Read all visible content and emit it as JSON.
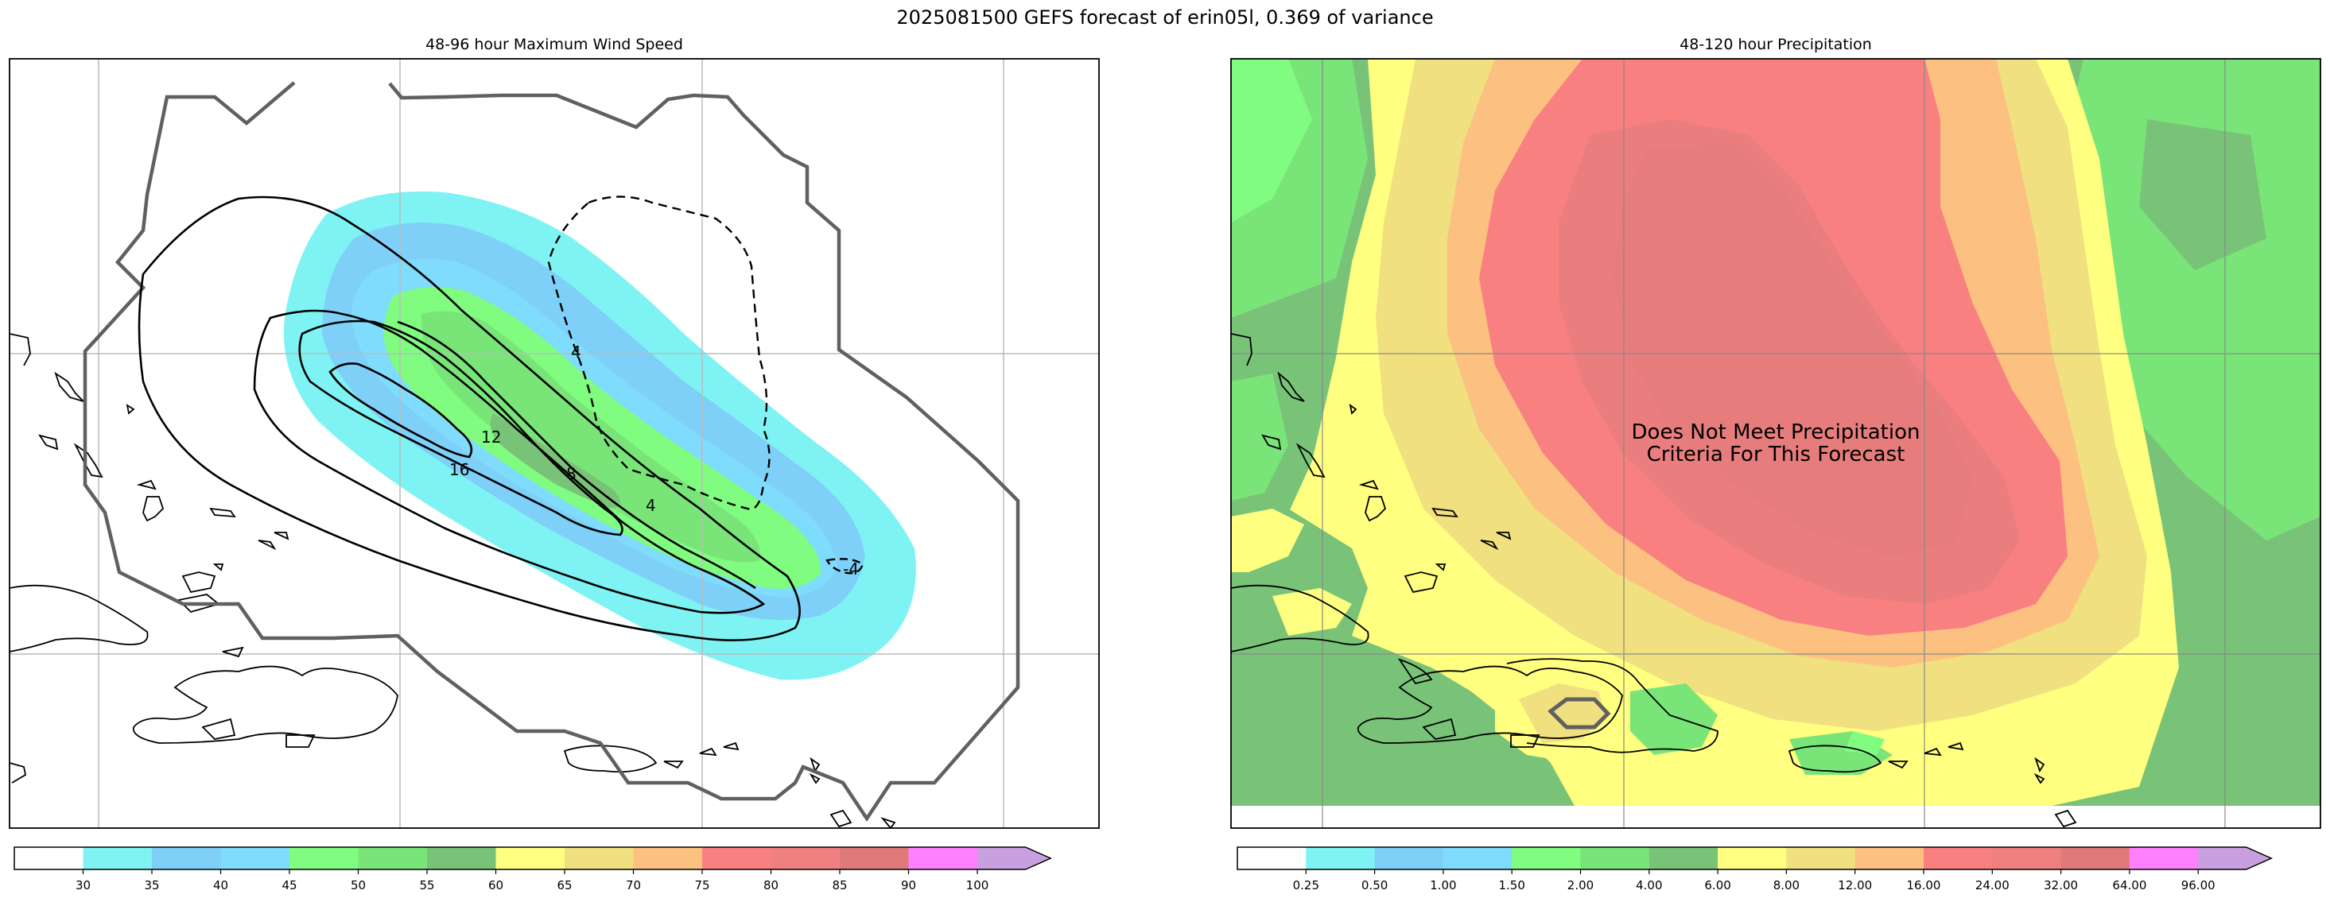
{
  "figure_title": "2025081500 GEFS forecast of erin05l, 0.369 of variance",
  "panels": {
    "wind": {
      "title": "48-96 hour Maximum Wind Speed",
      "contour_labels": [
        "16",
        "12",
        "8",
        "4",
        "4",
        "-4"
      ],
      "colorbar": {
        "ticks": [
          "30",
          "35",
          "40",
          "45",
          "50",
          "55",
          "60",
          "65",
          "70",
          "75",
          "80",
          "85",
          "90",
          "100"
        ],
        "colors": [
          "#ffffff",
          "#7ff3f3",
          "#7fd0f8",
          "#80dcfc",
          "#80fc80",
          "#79e579",
          "#79c379",
          "#ffff80",
          "#f0e080",
          "#fcc080",
          "#f88080",
          "#f08080",
          "#df7a7a",
          "#ff80ff",
          "#c8a0e0"
        ],
        "extend": "max"
      }
    },
    "precip": {
      "title": "48-120 hour Precipitation",
      "note": "Does Not Meet Precipitation Criteria For This Forecast",
      "colorbar": {
        "ticks": [
          "0.25",
          "0.50",
          "1.00",
          "1.50",
          "2.00",
          "4.00",
          "6.00",
          "8.00",
          "12.00",
          "16.00",
          "24.00",
          "32.00",
          "64.00",
          "96.00"
        ],
        "colors": [
          "#ffffff",
          "#7ff3f3",
          "#7fd0f8",
          "#80dcfc",
          "#80fc80",
          "#79e579",
          "#79c379",
          "#ffff80",
          "#f0e080",
          "#fcc080",
          "#f88080",
          "#f08080",
          "#df7a7a",
          "#ff80ff",
          "#c8a0e0"
        ],
        "extend": "max"
      }
    }
  },
  "colors": {
    "cone_outline": "#606060",
    "grid": "#bbbbbb",
    "coast": "#000000"
  }
}
